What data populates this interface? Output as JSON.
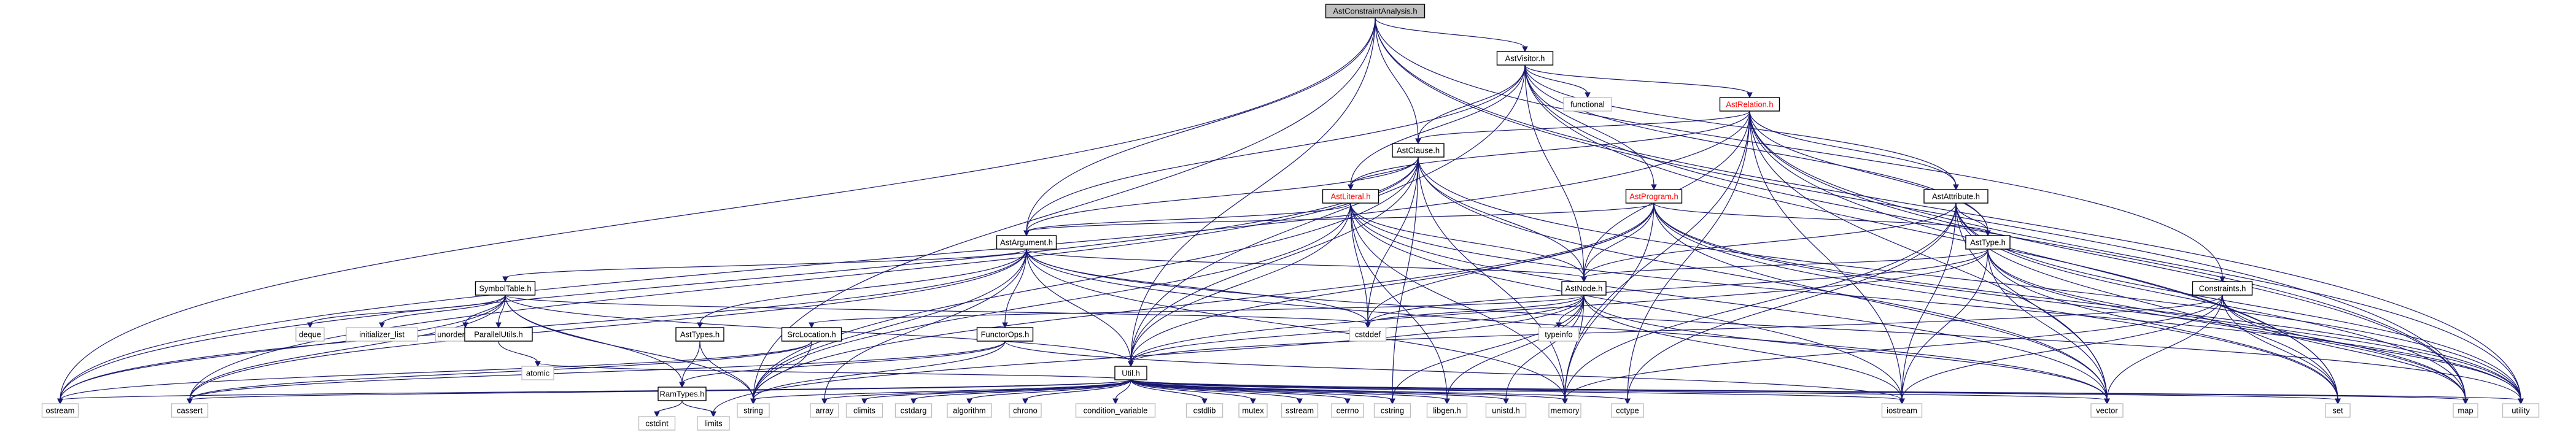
{
  "colors": {
    "root_fill": "#bfbfbf",
    "node_fill": "#ffffff",
    "red_label": "#ff0000",
    "edge": "#191970",
    "std_border": "#bfbfbf",
    "doc_border": "#000000"
  },
  "nodes": [
    {
      "id": "root",
      "label": "AstConstraintAnalysis.h",
      "kind": "root"
    },
    {
      "id": "astvisitor",
      "label": "AstVisitor.h",
      "kind": "doc"
    },
    {
      "id": "functional",
      "label": "functional",
      "kind": "std"
    },
    {
      "id": "astrelation",
      "label": "AstRelation.h",
      "kind": "red"
    },
    {
      "id": "astclause",
      "label": "AstClause.h",
      "kind": "doc"
    },
    {
      "id": "astliteral",
      "label": "AstLiteral.h",
      "kind": "red"
    },
    {
      "id": "astprogram",
      "label": "AstProgram.h",
      "kind": "red"
    },
    {
      "id": "astattribute",
      "label": "AstAttribute.h",
      "kind": "doc"
    },
    {
      "id": "astargument",
      "label": "AstArgument.h",
      "kind": "doc"
    },
    {
      "id": "asttype",
      "label": "AstType.h",
      "kind": "doc"
    },
    {
      "id": "symboltable",
      "label": "SymbolTable.h",
      "kind": "doc"
    },
    {
      "id": "astnode",
      "label": "AstNode.h",
      "kind": "doc"
    },
    {
      "id": "constraints",
      "label": "Constraints.h",
      "kind": "doc"
    },
    {
      "id": "deque",
      "label": "deque",
      "kind": "std"
    },
    {
      "id": "initializer_list",
      "label": "initializer_list",
      "kind": "std"
    },
    {
      "id": "unordered_map",
      "label": "unordered_map",
      "kind": "std"
    },
    {
      "id": "parallelutils",
      "label": "ParallelUtils.h",
      "kind": "doc"
    },
    {
      "id": "asttypes",
      "label": "AstTypes.h",
      "kind": "doc"
    },
    {
      "id": "srclocation",
      "label": "SrcLocation.h",
      "kind": "doc"
    },
    {
      "id": "functorops",
      "label": "FunctorOps.h",
      "kind": "doc"
    },
    {
      "id": "typeinfo",
      "label": "typeinfo",
      "kind": "std"
    },
    {
      "id": "cstddef",
      "label": "cstddef",
      "kind": "std"
    },
    {
      "id": "util",
      "label": "Util.h",
      "kind": "doc"
    },
    {
      "id": "atomic",
      "label": "atomic",
      "kind": "std"
    },
    {
      "id": "ramtypes",
      "label": "RamTypes.h",
      "kind": "doc"
    },
    {
      "id": "ostream",
      "label": "ostream",
      "kind": "std"
    },
    {
      "id": "cassert",
      "label": "cassert",
      "kind": "std"
    },
    {
      "id": "string",
      "label": "string",
      "kind": "std"
    },
    {
      "id": "array",
      "label": "array",
      "kind": "std"
    },
    {
      "id": "climits",
      "label": "climits",
      "kind": "std"
    },
    {
      "id": "cstdarg",
      "label": "cstdarg",
      "kind": "std"
    },
    {
      "id": "algorithm",
      "label": "algorithm",
      "kind": "std"
    },
    {
      "id": "chrono",
      "label": "chrono",
      "kind": "std"
    },
    {
      "id": "condition_variable",
      "label": "condition_variable",
      "kind": "std"
    },
    {
      "id": "cstdlib",
      "label": "cstdlib",
      "kind": "std"
    },
    {
      "id": "mutex",
      "label": "mutex",
      "kind": "std"
    },
    {
      "id": "sstream",
      "label": "sstream",
      "kind": "std"
    },
    {
      "id": "cerrno",
      "label": "cerrno",
      "kind": "std"
    },
    {
      "id": "cstring",
      "label": "cstring",
      "kind": "std"
    },
    {
      "id": "libgen",
      "label": "libgen.h",
      "kind": "std"
    },
    {
      "id": "unistd",
      "label": "unistd.h",
      "kind": "std"
    },
    {
      "id": "memory",
      "label": "memory",
      "kind": "std"
    },
    {
      "id": "cctype",
      "label": "cctype",
      "kind": "std"
    },
    {
      "id": "iostream",
      "label": "iostream",
      "kind": "std"
    },
    {
      "id": "vector",
      "label": "vector",
      "kind": "std"
    },
    {
      "id": "set",
      "label": "set",
      "kind": "std"
    },
    {
      "id": "map",
      "label": "map",
      "kind": "std"
    },
    {
      "id": "utility",
      "label": "utility",
      "kind": "std"
    },
    {
      "id": "cstdint",
      "label": "cstdint",
      "kind": "std"
    },
    {
      "id": "limits",
      "label": "limits",
      "kind": "std"
    }
  ],
  "edges": [
    [
      "root",
      "astvisitor"
    ],
    [
      "root",
      "astclause"
    ],
    [
      "root",
      "astargument"
    ],
    [
      "root",
      "ostream"
    ],
    [
      "root",
      "string"
    ],
    [
      "root",
      "util"
    ],
    [
      "root",
      "constraints"
    ],
    [
      "root",
      "map"
    ],
    [
      "root",
      "utility"
    ],
    [
      "astvisitor",
      "functional"
    ],
    [
      "astvisitor",
      "astrelation"
    ],
    [
      "astvisitor",
      "astclause"
    ],
    [
      "astvisitor",
      "astliteral"
    ],
    [
      "astvisitor",
      "astprogram"
    ],
    [
      "astvisitor",
      "astattribute"
    ],
    [
      "astvisitor",
      "astargument"
    ],
    [
      "astvisitor",
      "asttype"
    ],
    [
      "astvisitor",
      "astnode"
    ],
    [
      "astvisitor",
      "util"
    ],
    [
      "astvisitor",
      "map"
    ],
    [
      "astvisitor",
      "set"
    ],
    [
      "astrelation",
      "astclause"
    ],
    [
      "astrelation",
      "astliteral"
    ],
    [
      "astrelation",
      "astattribute"
    ],
    [
      "astrelation",
      "astnode"
    ],
    [
      "astrelation",
      "asttype"
    ],
    [
      "astrelation",
      "vector"
    ],
    [
      "astrelation",
      "iostream"
    ],
    [
      "astrelation",
      "memory"
    ],
    [
      "astrelation",
      "ostream"
    ],
    [
      "astrelation",
      "cctype"
    ],
    [
      "astrelation",
      "utility"
    ],
    [
      "astrelation",
      "set"
    ],
    [
      "astrelation",
      "map"
    ],
    [
      "astclause",
      "astliteral"
    ],
    [
      "astclause",
      "astnode"
    ],
    [
      "astclause",
      "astargument"
    ],
    [
      "astclause",
      "util"
    ],
    [
      "astclause",
      "string"
    ],
    [
      "astclause",
      "vector"
    ],
    [
      "astclause",
      "memory"
    ],
    [
      "astclause",
      "ostream"
    ],
    [
      "astclause",
      "cassert"
    ],
    [
      "astclause",
      "cstddef"
    ],
    [
      "astclause",
      "utility"
    ],
    [
      "astclause",
      "cstring"
    ],
    [
      "astliteral",
      "astargument"
    ],
    [
      "astliteral",
      "astnode"
    ],
    [
      "astliteral",
      "util"
    ],
    [
      "astliteral",
      "string"
    ],
    [
      "astliteral",
      "vector"
    ],
    [
      "astliteral",
      "memory"
    ],
    [
      "astliteral",
      "iostream"
    ],
    [
      "astliteral",
      "libgen"
    ],
    [
      "astliteral",
      "cstddef"
    ],
    [
      "astliteral",
      "utility"
    ],
    [
      "astprogram",
      "astnode"
    ],
    [
      "astprogram",
      "asttype"
    ],
    [
      "astprogram",
      "astargument"
    ],
    [
      "astprogram",
      "util"
    ],
    [
      "astprogram",
      "memory"
    ],
    [
      "astprogram",
      "vector"
    ],
    [
      "astprogram",
      "map"
    ],
    [
      "astprogram",
      "set"
    ],
    [
      "astprogram",
      "string"
    ],
    [
      "astprogram",
      "cstddef"
    ],
    [
      "astprogram",
      "utility"
    ],
    [
      "astattribute",
      "asttype"
    ],
    [
      "astattribute",
      "astnode"
    ],
    [
      "astattribute",
      "iostream"
    ],
    [
      "astattribute",
      "vector"
    ],
    [
      "astattribute",
      "cctype"
    ],
    [
      "astattribute",
      "memory"
    ],
    [
      "astattribute",
      "utility"
    ],
    [
      "astattribute",
      "set"
    ],
    [
      "astattribute",
      "map"
    ],
    [
      "astargument",
      "symboltable"
    ],
    [
      "astargument",
      "astnode"
    ],
    [
      "astargument",
      "asttypes"
    ],
    [
      "astargument",
      "functorops"
    ],
    [
      "astargument",
      "util"
    ],
    [
      "astargument",
      "string"
    ],
    [
      "astargument",
      "vector"
    ],
    [
      "astargument",
      "memory"
    ],
    [
      "astargument",
      "ostream"
    ],
    [
      "astargument",
      "cassert"
    ],
    [
      "astargument",
      "cstddef"
    ],
    [
      "astargument",
      "array"
    ],
    [
      "astargument",
      "utility"
    ],
    [
      "asttype",
      "astnode"
    ],
    [
      "asttype",
      "util"
    ],
    [
      "asttype",
      "vector"
    ],
    [
      "asttype",
      "iostream"
    ],
    [
      "asttype",
      "set"
    ],
    [
      "asttype",
      "map"
    ],
    [
      "asttype",
      "utility"
    ],
    [
      "asttype",
      "cstddef"
    ],
    [
      "symboltable",
      "deque"
    ],
    [
      "symboltable",
      "initializer_list"
    ],
    [
      "symboltable",
      "unordered_map"
    ],
    [
      "symboltable",
      "parallelutils"
    ],
    [
      "symboltable",
      "ramtypes"
    ],
    [
      "symboltable",
      "util"
    ],
    [
      "symboltable",
      "string"
    ],
    [
      "symboltable",
      "cassert"
    ],
    [
      "symboltable",
      "ostream"
    ],
    [
      "symboltable",
      "cstddef"
    ],
    [
      "astnode",
      "srclocation"
    ],
    [
      "astnode",
      "typeinfo"
    ],
    [
      "astnode",
      "util"
    ],
    [
      "astnode",
      "cstddef"
    ],
    [
      "astnode",
      "cstring"
    ],
    [
      "astnode",
      "libgen"
    ],
    [
      "astnode",
      "unistd"
    ],
    [
      "astnode",
      "memory"
    ],
    [
      "astnode",
      "iostream"
    ],
    [
      "astnode",
      "limits"
    ],
    [
      "astnode",
      "vector"
    ],
    [
      "constraints",
      "util"
    ],
    [
      "constraints",
      "vector"
    ],
    [
      "constraints",
      "set"
    ],
    [
      "constraints",
      "map"
    ],
    [
      "constraints",
      "utility"
    ],
    [
      "constraints",
      "iostream"
    ],
    [
      "constraints",
      "memory"
    ],
    [
      "parallelutils",
      "atomic"
    ],
    [
      "asttypes",
      "ramtypes"
    ],
    [
      "asttypes",
      "string"
    ],
    [
      "srclocation",
      "string"
    ],
    [
      "srclocation",
      "ostream"
    ],
    [
      "srclocation",
      "cassert"
    ],
    [
      "functorops",
      "ramtypes"
    ],
    [
      "functorops",
      "cassert"
    ],
    [
      "functorops",
      "string"
    ],
    [
      "functorops",
      "iostream"
    ],
    [
      "ramtypes",
      "cstdint"
    ],
    [
      "ramtypes",
      "limits"
    ],
    [
      "util",
      "array"
    ],
    [
      "util",
      "atomic"
    ],
    [
      "util",
      "climits"
    ],
    [
      "util",
      "cstdarg"
    ],
    [
      "util",
      "algorithm"
    ],
    [
      "util",
      "chrono"
    ],
    [
      "util",
      "condition_variable"
    ],
    [
      "util",
      "cstdlib"
    ],
    [
      "util",
      "mutex"
    ],
    [
      "util",
      "sstream"
    ],
    [
      "util",
      "cerrno"
    ],
    [
      "util",
      "cstring"
    ],
    [
      "util",
      "libgen"
    ],
    [
      "util",
      "unistd"
    ],
    [
      "util",
      "memory"
    ],
    [
      "util",
      "cctype"
    ],
    [
      "util",
      "iostream"
    ],
    [
      "util",
      "vector"
    ],
    [
      "util",
      "set"
    ],
    [
      "util",
      "map"
    ],
    [
      "util",
      "utility"
    ],
    [
      "util",
      "string"
    ],
    [
      "util",
      "cassert"
    ],
    [
      "util",
      "ostream"
    ]
  ]
}
